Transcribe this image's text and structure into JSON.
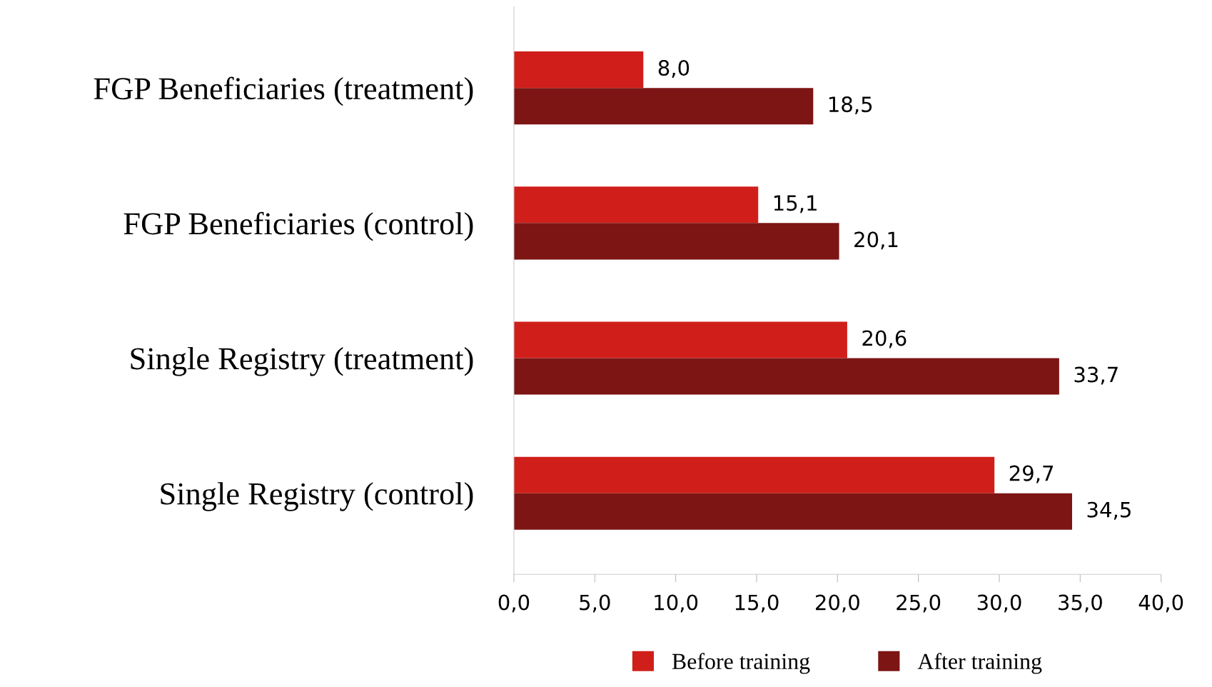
{
  "chart_data": {
    "type": "bar",
    "orientation": "horizontal",
    "categories": [
      "FGP Beneficiaries (treatment)",
      "FGP Beneficiaries (control)",
      "Single Registry (treatment)",
      "Single Registry (control)"
    ],
    "series": [
      {
        "name": "Before training",
        "color": "#d01f1a",
        "values": [
          8.0,
          15.1,
          20.6,
          29.7
        ],
        "value_labels": [
          "8,0",
          "15,1",
          "20,6",
          "29,7"
        ]
      },
      {
        "name": "After training",
        "color": "#7d1515",
        "values": [
          18.5,
          20.1,
          33.7,
          34.5
        ],
        "value_labels": [
          "18,5",
          "20,1",
          "33,7",
          "34,5"
        ]
      }
    ],
    "xlim": [
      0,
      40
    ],
    "xticks": [
      {
        "value": 0,
        "label": "0,0"
      },
      {
        "value": 5,
        "label": "5,0"
      },
      {
        "value": 10,
        "label": "10,0"
      },
      {
        "value": 15,
        "label": "15,0"
      },
      {
        "value": 20,
        "label": "20,0"
      },
      {
        "value": 25,
        "label": "25,0"
      },
      {
        "value": 30,
        "label": "30,0"
      },
      {
        "value": 35,
        "label": "35,0"
      },
      {
        "value": 40,
        "label": "40,0"
      }
    ],
    "grid": false,
    "legend": "bottom"
  }
}
